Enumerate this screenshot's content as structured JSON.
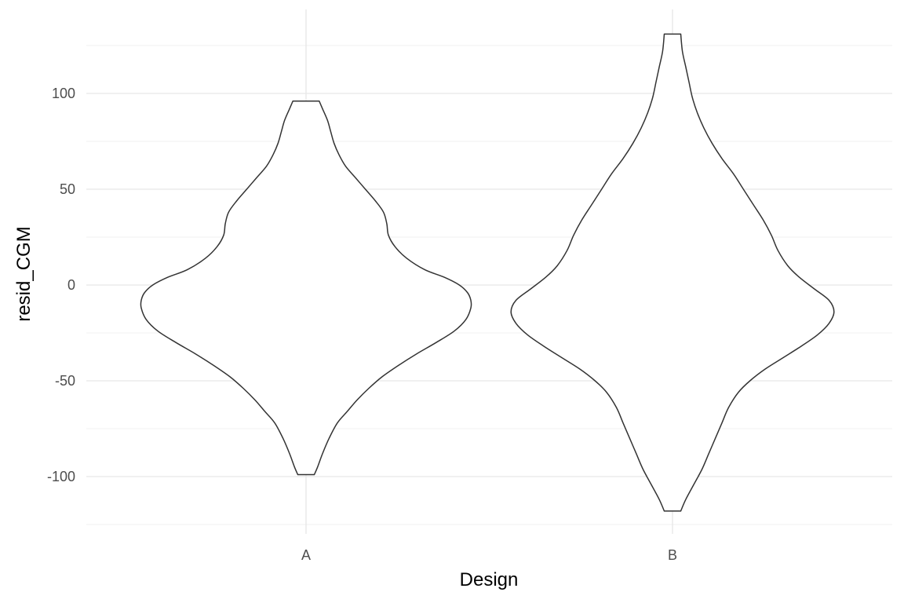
{
  "chart_data": {
    "type": "violin",
    "title": "",
    "xlabel": "Design",
    "ylabel": "resid_CGM",
    "categories": [
      "A",
      "B"
    ],
    "ylim": [
      -125,
      135
    ],
    "y_ticks": [
      -100,
      -50,
      0,
      50,
      100
    ],
    "y_tick_labels": [
      "-100",
      "-50",
      "0",
      "50",
      "100"
    ],
    "grid": true,
    "legend": "none",
    "line_color": "#333333",
    "fill_color": "#ffffff",
    "violins": [
      {
        "category": "A",
        "min": -99,
        "max": 96,
        "density_profile": [
          [
            -99,
            0.05
          ],
          [
            -95,
            0.07
          ],
          [
            -88,
            0.1
          ],
          [
            -80,
            0.14
          ],
          [
            -72,
            0.19
          ],
          [
            -66,
            0.25
          ],
          [
            -60,
            0.31
          ],
          [
            -54,
            0.38
          ],
          [
            -48,
            0.46
          ],
          [
            -42,
            0.56
          ],
          [
            -36,
            0.67
          ],
          [
            -30,
            0.79
          ],
          [
            -24,
            0.9
          ],
          [
            -18,
            0.97
          ],
          [
            -12,
            1.0
          ],
          [
            -8,
            1.0
          ],
          [
            -4,
            0.98
          ],
          [
            0,
            0.93
          ],
          [
            4,
            0.84
          ],
          [
            8,
            0.72
          ],
          [
            14,
            0.61
          ],
          [
            20,
            0.54
          ],
          [
            26,
            0.5
          ],
          [
            32,
            0.49
          ],
          [
            38,
            0.47
          ],
          [
            44,
            0.42
          ],
          [
            50,
            0.36
          ],
          [
            56,
            0.3
          ],
          [
            62,
            0.24
          ],
          [
            68,
            0.2
          ],
          [
            74,
            0.17
          ],
          [
            80,
            0.15
          ],
          [
            86,
            0.13
          ],
          [
            92,
            0.1
          ],
          [
            96,
            0.08
          ]
        ]
      },
      {
        "category": "B",
        "min": -118,
        "max": 131,
        "density_profile": [
          [
            -118,
            0.05
          ],
          [
            -112,
            0.08
          ],
          [
            -104,
            0.13
          ],
          [
            -96,
            0.18
          ],
          [
            -88,
            0.22
          ],
          [
            -80,
            0.26
          ],
          [
            -72,
            0.3
          ],
          [
            -64,
            0.34
          ],
          [
            -56,
            0.4
          ],
          [
            -50,
            0.47
          ],
          [
            -44,
            0.56
          ],
          [
            -38,
            0.67
          ],
          [
            -32,
            0.78
          ],
          [
            -26,
            0.88
          ],
          [
            -20,
            0.95
          ],
          [
            -14,
            0.98
          ],
          [
            -8,
            0.95
          ],
          [
            -2,
            0.86
          ],
          [
            4,
            0.77
          ],
          [
            10,
            0.7
          ],
          [
            18,
            0.64
          ],
          [
            26,
            0.6
          ],
          [
            34,
            0.55
          ],
          [
            42,
            0.49
          ],
          [
            50,
            0.43
          ],
          [
            58,
            0.37
          ],
          [
            66,
            0.3
          ],
          [
            74,
            0.24
          ],
          [
            82,
            0.19
          ],
          [
            90,
            0.15
          ],
          [
            98,
            0.12
          ],
          [
            106,
            0.1
          ],
          [
            114,
            0.08
          ],
          [
            122,
            0.06
          ],
          [
            131,
            0.05
          ]
        ]
      }
    ]
  }
}
